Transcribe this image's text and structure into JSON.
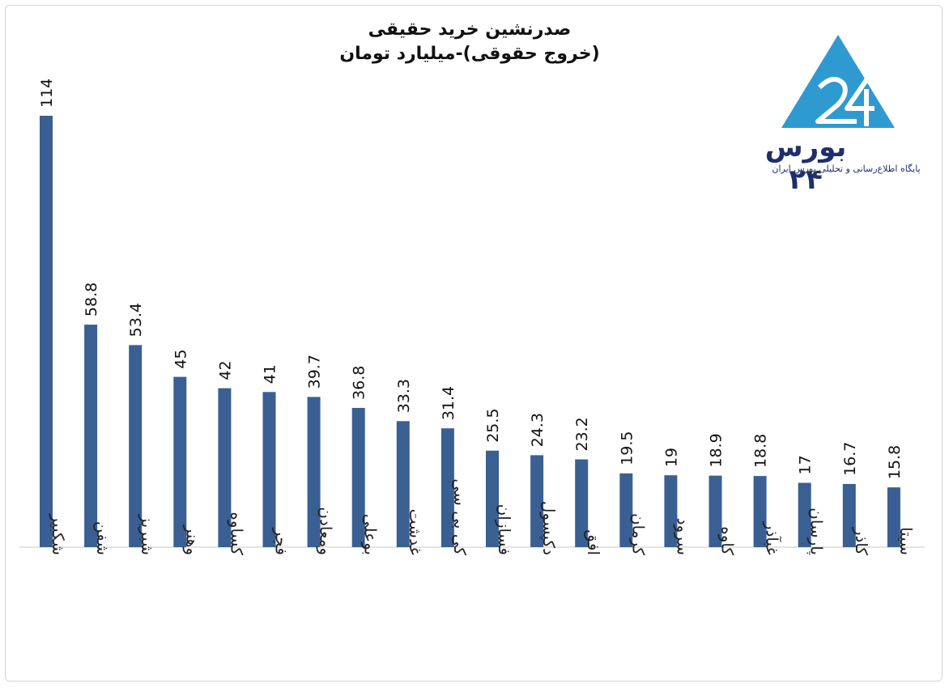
{
  "chart_data": {
    "type": "bar",
    "title_line1": "صدرنشین خرید حقیقی",
    "title_line2": "(خروج حقوقی)-میلیارد تومان",
    "categories": [
      "شکبیر",
      "شفن",
      "شبریز",
      "وهنر",
      "کساوه",
      "فجر",
      "ومعادن",
      "بوعلی",
      "غدشت",
      "کی بی سی",
      "فسازان",
      "دکپسول",
      "افق",
      "کرمان",
      "سرود",
      "کاوه",
      "غبآذر",
      "پارسان",
      "کاذر",
      "سیتا"
    ],
    "value_labels": [
      "114",
      "58.8",
      "53.4",
      "45",
      "42",
      "41",
      "39.7",
      "36.8",
      "33.3",
      "31.4",
      "25.5",
      "24.3",
      "23.2",
      "19.5",
      "19",
      "18.9",
      "18.8",
      "17",
      "16.7",
      "15.8"
    ],
    "values": [
      114,
      58.8,
      53.4,
      45,
      42,
      41,
      39.7,
      36.8,
      33.3,
      31.4,
      25.5,
      24.3,
      23.2,
      19.5,
      19,
      18.9,
      18.8,
      17,
      16.7,
      15.8
    ],
    "bar_color": "#3a5f93",
    "grid": false
  },
  "logo": {
    "name": "بورس ۲۴",
    "tagline": "پایگاه اطلاع‌رسانی و تحلیلی بورس ایران",
    "color_light": "#2e9ad0",
    "color_dark": "#1f2f6b"
  }
}
